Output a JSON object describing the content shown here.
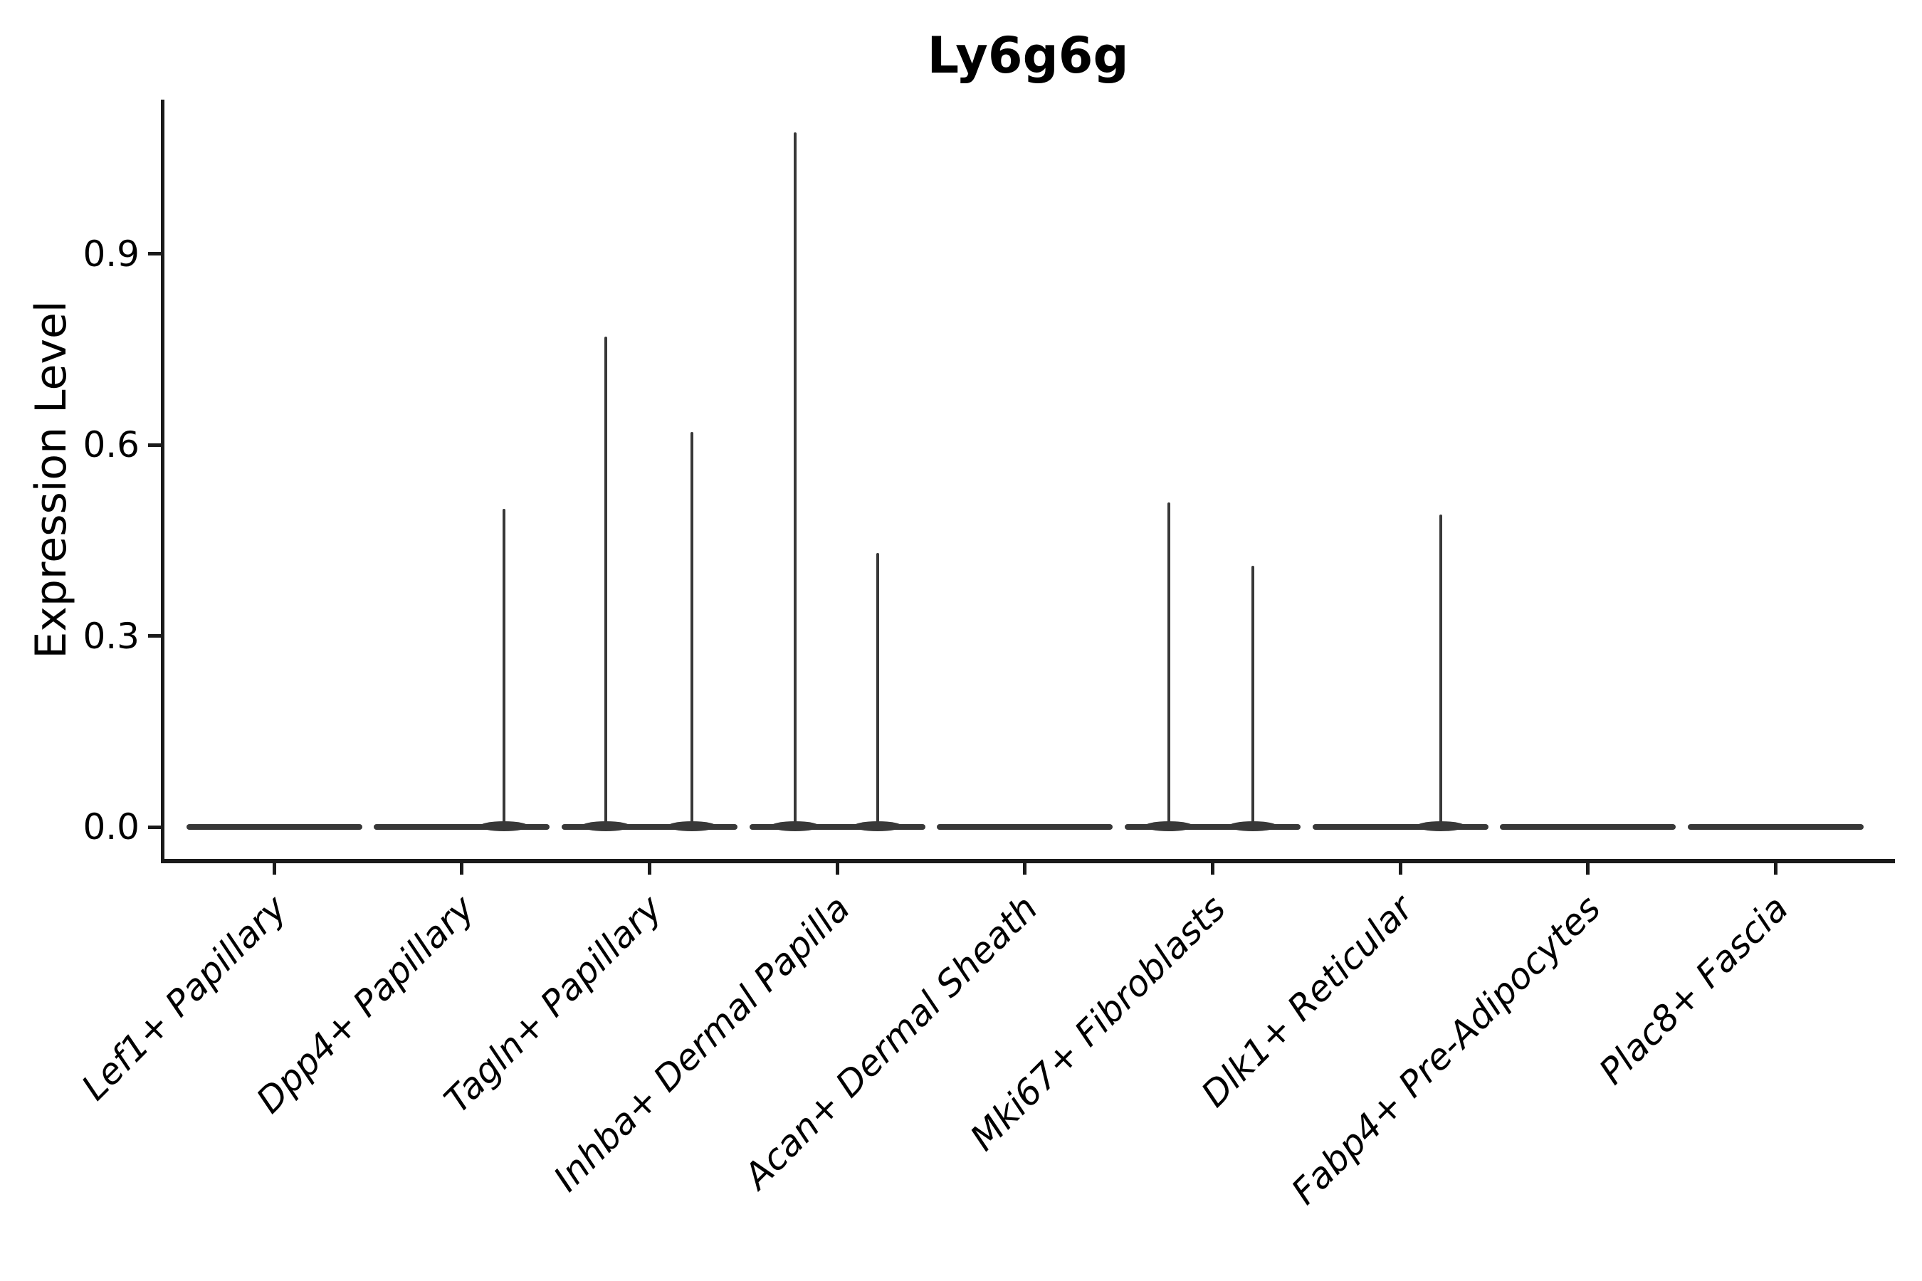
{
  "chart_data": {
    "type": "violin",
    "title": "Ly6g6g",
    "xlabel": "",
    "ylabel": "Expression Level",
    "ytick_labels": [
      "0.0",
      "0.3",
      "0.6",
      "0.9"
    ],
    "ytick_values": [
      0.0,
      0.3,
      0.6,
      0.9
    ],
    "ylim": [
      -0.05,
      1.14
    ],
    "grid": false,
    "legend": null,
    "categories": [
      "Lef1+ Papillary",
      "Dpp4+ Papillary",
      "Tagln+ Papillary",
      "Inhba+ Dermal Papilla",
      "Acan+ Dermal Sheath",
      "Mki67+ Fibroblasts",
      "Dlk1+ Reticular",
      "Fabp4+ Pre-Adipocytes",
      "Plac8+ Fascia"
    ],
    "violins": [
      {
        "category": "Lef1+ Papillary",
        "baseline_value": 0.0,
        "spikes": []
      },
      {
        "category": "Dpp4+ Papillary",
        "baseline_value": 0.0,
        "spikes": [
          {
            "offset": 0.24,
            "value": 0.5
          }
        ]
      },
      {
        "category": "Tagln+ Papillary",
        "baseline_value": 0.0,
        "spikes": [
          {
            "offset": -0.25,
            "value": 0.77
          },
          {
            "offset": 0.24,
            "value": 0.62
          }
        ]
      },
      {
        "category": "Inhba+ Dermal Papilla",
        "baseline_value": 0.0,
        "spikes": [
          {
            "offset": -0.24,
            "value": 1.09
          },
          {
            "offset": 0.23,
            "value": 0.43
          }
        ]
      },
      {
        "category": "Acan+ Dermal Sheath",
        "baseline_value": 0.0,
        "spikes": []
      },
      {
        "category": "Mki67+ Fibroblasts",
        "baseline_value": 0.0,
        "spikes": [
          {
            "offset": -0.25,
            "value": 0.51
          },
          {
            "offset": 0.23,
            "value": 0.41
          }
        ]
      },
      {
        "category": "Dlk1+ Reticular",
        "baseline_value": 0.0,
        "spikes": [
          {
            "offset": 0.23,
            "value": 0.49
          }
        ]
      },
      {
        "category": "Fabp4+ Pre-Adipocytes",
        "baseline_value": 0.0,
        "spikes": []
      },
      {
        "category": "Plac8+ Fascia",
        "baseline_value": 0.0,
        "spikes": []
      }
    ],
    "colors": {
      "background": "#ffffff",
      "axis": "#1a1a1a",
      "text": "#000000",
      "violin": "#383838"
    }
  }
}
